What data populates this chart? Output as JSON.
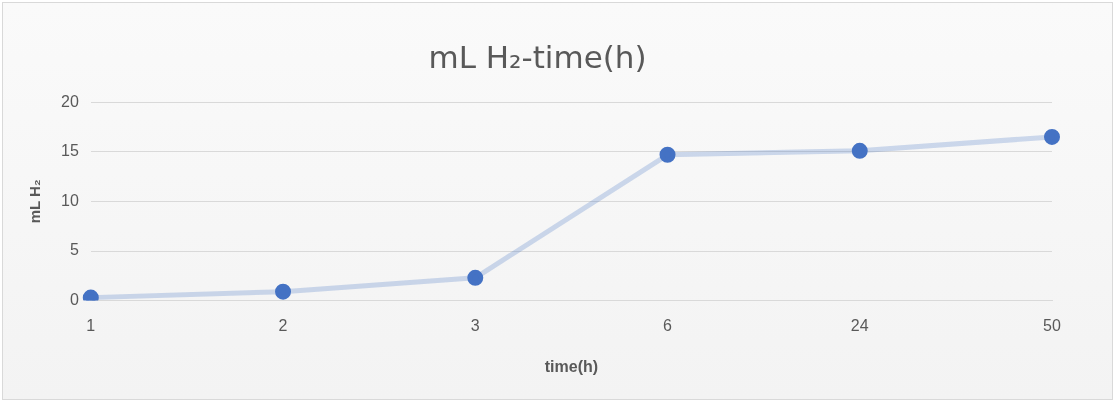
{
  "chart_data": {
    "type": "line",
    "title": "mL H₂-time(h)",
    "xlabel": "time(h)",
    "ylabel": "mL H₂",
    "categories": [
      "1",
      "2",
      "3",
      "6",
      "24",
      "50"
    ],
    "series": [
      {
        "color": "#4472c4",
        "values": [
          0.3,
          0.9,
          2.3,
          14.7,
          15.1,
          16.5
        ]
      }
    ],
    "ylim": [
      0,
      20
    ],
    "yticks": [
      0,
      5,
      10,
      15,
      20
    ],
    "grid": "y",
    "legend": false,
    "marker": "circle"
  }
}
